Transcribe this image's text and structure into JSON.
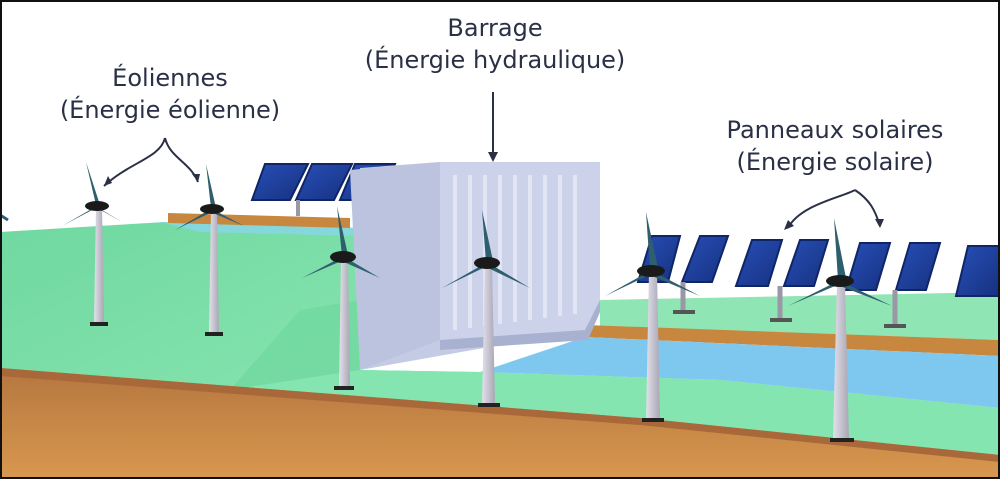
{
  "labels": {
    "wind": {
      "title": "Éoliennes",
      "subtitle": "(Énergie éolienne)"
    },
    "dam": {
      "title": "Barrage",
      "subtitle": "(Énergie hydraulique)"
    },
    "solar": {
      "title": "Panneaux solaires",
      "subtitle": "(Énergie solaire)"
    }
  },
  "colors": {
    "grass": "#7fe0a8",
    "water": "#7ec8f0",
    "dirt": "#c88a4a",
    "dam": "#c8cfe6",
    "panel": "#1d3f9e",
    "turbine": "#c9c6d3",
    "blade": "#2f5f6e",
    "text": "#2a3045"
  }
}
